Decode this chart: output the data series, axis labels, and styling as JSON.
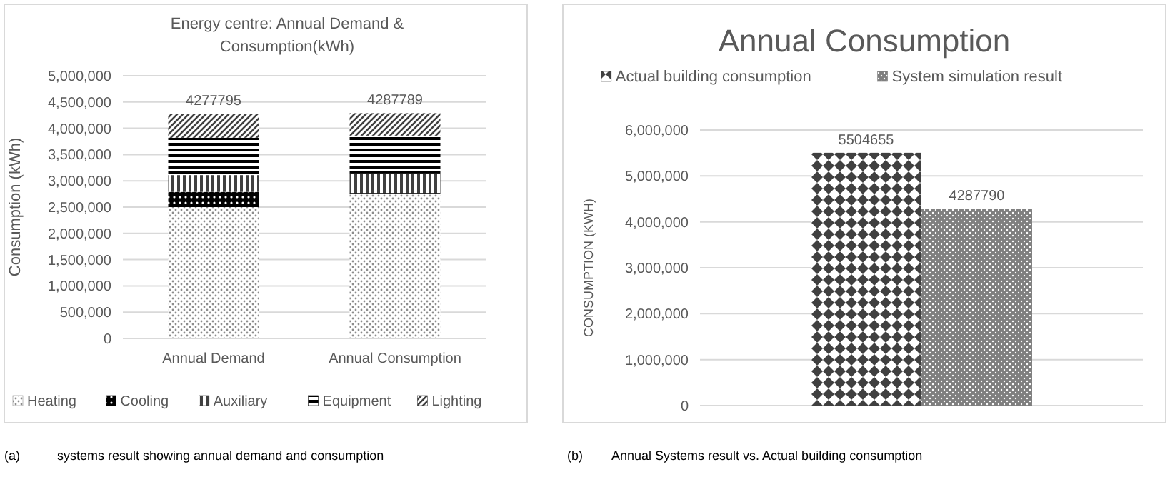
{
  "chart_data": [
    {
      "type": "bar",
      "title": "Energy centre: Annual Demand & Consumption(kWh)",
      "ylabel": "Consumption (kWh)",
      "categories": [
        "Annual Demand",
        "Annual Consumption"
      ],
      "stacked": true,
      "series": [
        {
          "name": "Heating",
          "color": "#8c8c8c",
          "values": [
            2500000,
            2750000
          ]
        },
        {
          "name": "Cooling",
          "color": "#000000",
          "values": [
            290000,
            20000
          ]
        },
        {
          "name": "Auxiliary",
          "color": "#404040",
          "values": [
            320000,
            370000
          ]
        },
        {
          "name": "Equipment",
          "color": "#000000",
          "values": [
            710000,
            720000
          ]
        },
        {
          "name": "Lighting",
          "color": "#404040",
          "values": [
            457795,
            427789
          ]
        }
      ],
      "totals": [
        "4277795",
        "4287789"
      ],
      "ylim": [
        0,
        5000000
      ],
      "yticks": [
        0,
        {
          "value": 500000,
          "label": "500,000"
        },
        {
          "value": 1000000,
          "label": "1,000,000"
        },
        {
          "value": 1500000,
          "label": "1,500,000"
        },
        {
          "value": 2000000,
          "label": "2,000,000"
        },
        {
          "value": 2500000,
          "label": "2,500,000"
        },
        {
          "value": 3000000,
          "label": "3,000,000"
        },
        {
          "value": 3500000,
          "label": "3,500,000"
        },
        {
          "value": 4000000,
          "label": "4,000,000"
        },
        {
          "value": 4500000,
          "label": "4,500,000"
        },
        {
          "value": 5000000,
          "label": "5,000,000"
        }
      ],
      "grid": "y",
      "legend": "bottom",
      "annotations": [
        "(a)",
        "systems result showing annual demand and consumption"
      ]
    },
    {
      "type": "bar",
      "title": "Annual Consumption",
      "ylabel": "CONSUMPTION (KWH)",
      "categories": [
        null
      ],
      "series": [
        {
          "name": "Actual building consumption",
          "color": "#404040",
          "values": [
            5504655
          ]
        },
        {
          "name": "System simulation result",
          "color": "#7f7f7f",
          "values": [
            4287790
          ]
        }
      ],
      "data_labels": true,
      "ylim": [
        0,
        6000000
      ],
      "yticks": [
        0,
        {
          "value": 1000000,
          "label": "1,000,000"
        },
        {
          "value": 2000000,
          "label": "2,000,000"
        },
        {
          "value": 3000000,
          "label": "3,000,000"
        },
        {
          "value": 4000000,
          "label": "4,000,000"
        },
        {
          "value": 5000000,
          "label": "5,000,000"
        },
        {
          "value": 6000000,
          "label": "6,000,000"
        }
      ],
      "grid": "y",
      "legend": "top",
      "annotations": [
        "(b)",
        "Annual Systems result vs. Actual building consumption"
      ]
    }
  ]
}
